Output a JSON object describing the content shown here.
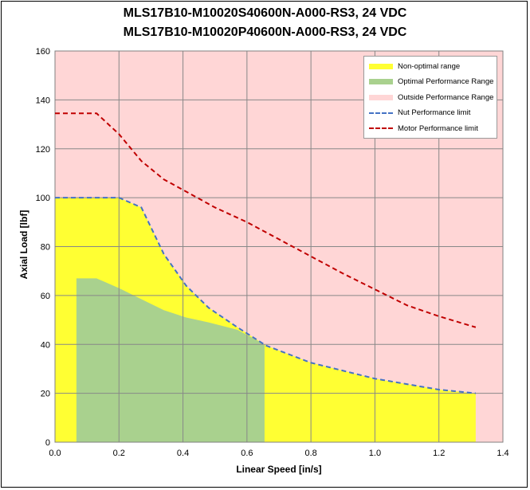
{
  "title_line1": "MLS17B10-M10020S40600N-A000-RS3, 24 VDC",
  "title_line2": "MLS17B10-M10020P40600N-A000-RS3, 24 VDC",
  "chart_data": {
    "type": "area",
    "xlabel": "Linear Speed [in/s]",
    "ylabel": "Axial Load [lbf]",
    "xlim": [
      0.0,
      1.4
    ],
    "ylim": [
      0,
      160
    ],
    "xticks": [
      "0.0",
      "0.2",
      "0.4",
      "0.6",
      "0.8",
      "1.0",
      "1.2",
      "1.4"
    ],
    "yticks": [
      "0",
      "20",
      "40",
      "60",
      "80",
      "100",
      "120",
      "140",
      "160"
    ],
    "grid": true,
    "legend_position": "top-right",
    "colors": {
      "background": "#ffd6d6",
      "non_optimal": "#ffff33",
      "optimal": "#a9d18e",
      "nut_limit": "#4472c4",
      "motor_limit": "#c00000",
      "grid": "#888888"
    },
    "legend": [
      {
        "label": "Non-optimal range",
        "kind": "swatch",
        "color": "#ffff33"
      },
      {
        "label": "Optimal Performance Range",
        "kind": "swatch",
        "color": "#a9d18e"
      },
      {
        "label": "Outside Performance Range",
        "kind": "swatch",
        "color": "#ffd6d6"
      },
      {
        "label": "Nut Performance limit",
        "kind": "dash",
        "color": "#4472c4"
      },
      {
        "label": "Motor Performance limit",
        "kind": "dash",
        "color": "#c00000"
      }
    ],
    "series": [
      {
        "name": "Nut Performance limit",
        "x": [
          0.0,
          0.2,
          0.27,
          0.34,
          0.41,
          0.48,
          0.57,
          0.66,
          0.8,
          1.0,
          1.2,
          1.315
        ],
        "y": [
          100,
          100,
          96,
          77,
          64,
          55,
          47,
          39.5,
          32.5,
          26,
          21.5,
          20
        ]
      },
      {
        "name": "Motor Performance limit",
        "x": [
          0.0,
          0.13,
          0.2,
          0.27,
          0.34,
          0.41,
          0.5,
          0.6,
          0.7,
          0.8,
          0.9,
          1.0,
          1.1,
          1.2,
          1.315
        ],
        "y": [
          134.5,
          134.5,
          126,
          115,
          107.5,
          102.5,
          96,
          90,
          83,
          76,
          69,
          62.5,
          56,
          51.5,
          47
        ]
      },
      {
        "name": "Optimal Performance Range",
        "x": [
          0.067,
          0.067,
          0.13,
          0.2,
          0.27,
          0.34,
          0.41,
          0.48,
          0.57,
          0.655,
          0.655
        ],
        "y": [
          0,
          67,
          67,
          63,
          58.5,
          54,
          51,
          49,
          46,
          40,
          0
        ]
      }
    ]
  }
}
